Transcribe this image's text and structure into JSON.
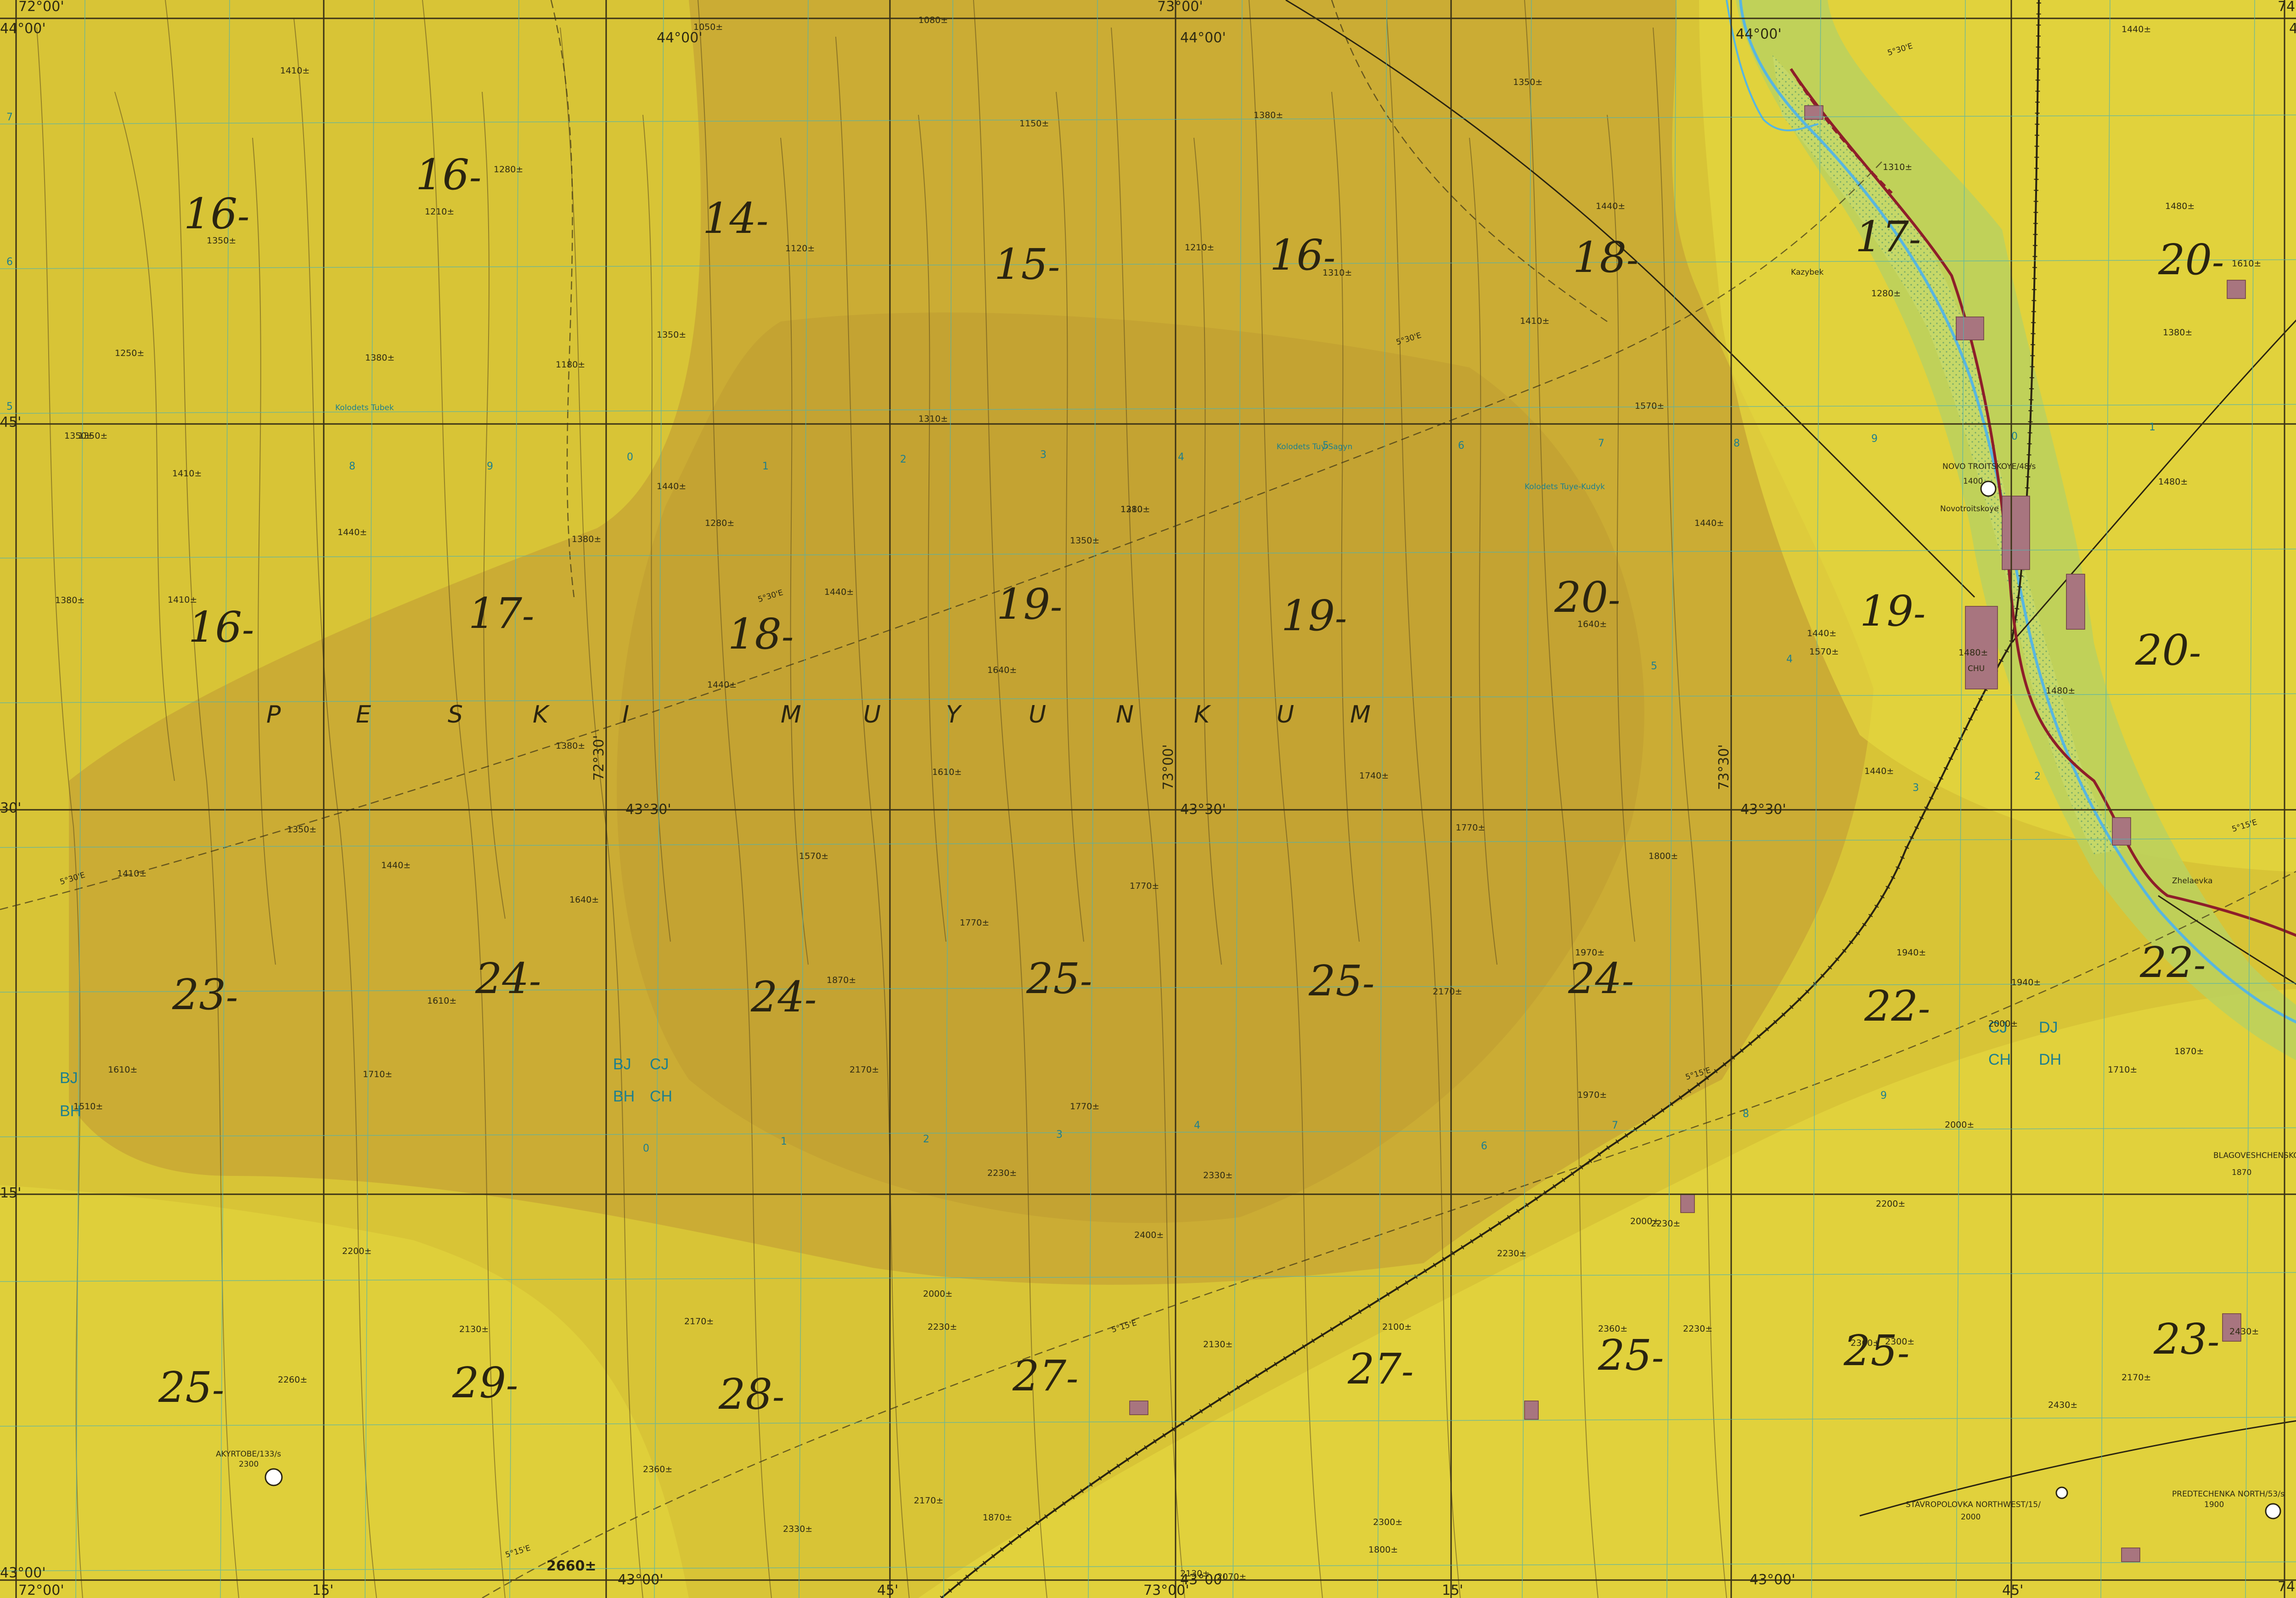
{
  "colors": {
    "terrain_base": "#d8c436",
    "terrain_dark": "#c7a733",
    "terrain_light": "#e4d63c",
    "valley_green": "#bfd35a",
    "river_blue": "#58b6e0",
    "settlement": "#a8757f",
    "road_red": "#8e1e2a",
    "grid_line": "#3a3216",
    "utm_line": "#4fb3b0"
  },
  "corner_labels": {
    "top_left_lon": "72°00'",
    "top_left_lat": "44°00'",
    "top_center_lat": "44°00'",
    "top_center_lon": "73°00'",
    "top_right_lat_a": "44°00'",
    "top_right_lat_b": "44°00'",
    "top_right_lon": "74°00'",
    "bottom_left_lat": "43°00'",
    "bottom_left_lon": "72°00'",
    "bottom_mid_lat_a": "43°00'",
    "bottom_mid_lon": "73°00'",
    "bottom_mid_lat_b": "43°00'",
    "bottom_right_lat": "43°00'",
    "bottom_right_lon": "74°00'"
  },
  "graticule": {
    "lat_45": "45'",
    "lat_30": "30'",
    "lat_15": "15'",
    "lat_4330_a": "43°30'",
    "lat_4330_b": "43°30'",
    "lat_4330_c": "43°30'",
    "lon_7230": "72°30'",
    "lon_7300": "73°00'",
    "lon_7330": "73°30'",
    "lon_15_a": "15'",
    "lon_45_a": "45'",
    "lon_15_b": "15'",
    "lon_45_b": "45'"
  },
  "magnetic_declination": {
    "d1": "5°30'E",
    "d2": "5°30'E",
    "d3": "5°30'E",
    "d4": "5°30'E",
    "d5": "5°15'E",
    "d6": "5°15'E",
    "d7": "5°15'E",
    "d8": "5°15'E"
  },
  "desert_name": {
    "letters": [
      "P",
      "E",
      "S",
      "K",
      "I",
      "M",
      "U",
      "Y",
      "U",
      "N",
      "K",
      "U",
      "M"
    ]
  },
  "grid_zone_labels": {
    "left_bj": "BJ",
    "left_bh": "BH",
    "center_bj": "BJ",
    "center_cj": "CJ",
    "center_bh": "BH",
    "center_ch": "CH",
    "right_cj": "CJ",
    "right_dj": "DJ",
    "right_ch": "CH",
    "right_dh": "DH"
  },
  "max_elevation_figures": [
    {
      "value": "16",
      "suffix": "-"
    },
    {
      "value": "16",
      "suffix": "-"
    },
    {
      "value": "14",
      "suffix": "-"
    },
    {
      "value": "15",
      "suffix": "-"
    },
    {
      "value": "16",
      "suffix": "-"
    },
    {
      "value": "18",
      "suffix": "-"
    },
    {
      "value": "17",
      "suffix": "-"
    },
    {
      "value": "20",
      "suffix": "-"
    },
    {
      "value": "16",
      "suffix": "-"
    },
    {
      "value": "17",
      "suffix": "-"
    },
    {
      "value": "18",
      "suffix": "-"
    },
    {
      "value": "19",
      "suffix": "-"
    },
    {
      "value": "19",
      "suffix": "-"
    },
    {
      "value": "20",
      "suffix": "-"
    },
    {
      "value": "19",
      "suffix": "-"
    },
    {
      "value": "20",
      "suffix": "-"
    },
    {
      "value": "23",
      "suffix": "-"
    },
    {
      "value": "24",
      "suffix": "-"
    },
    {
      "value": "24",
      "suffix": "-"
    },
    {
      "value": "25",
      "suffix": "-"
    },
    {
      "value": "25",
      "suffix": "-"
    },
    {
      "value": "24",
      "suffix": "-"
    },
    {
      "value": "22",
      "suffix": "-"
    },
    {
      "value": "22",
      "suffix": "-"
    },
    {
      "value": "25",
      "suffix": "-"
    },
    {
      "value": "29",
      "suffix": "-"
    },
    {
      "value": "28",
      "suffix": "-"
    },
    {
      "value": "27",
      "suffix": "-"
    },
    {
      "value": "27",
      "suffix": "-"
    },
    {
      "value": "25",
      "suffix": "-"
    },
    {
      "value": "25",
      "suffix": "-"
    },
    {
      "value": "23",
      "suffix": "-"
    }
  ],
  "spot_heights": [
    "1410±",
    "1050±",
    "1080±",
    "1440±",
    "1280±",
    "1210±",
    "1350±",
    "1150±",
    "1380±",
    "1120±",
    "1210±",
    "1310±",
    "1350±",
    "1310±",
    "1440±",
    "1480±",
    "1280±",
    "1350±",
    "1250±",
    "1180±",
    "1380±",
    "1410±",
    "1380±",
    "1350±",
    "1310±",
    "1570±",
    "1610±",
    "1350±",
    "1410±",
    "1440±",
    "1280±",
    "1280±",
    "1310±",
    "1440±",
    "1480±",
    "1350±",
    "1440±",
    "1380±",
    "1410±",
    "1380±",
    "1440±",
    "1440±",
    "1640±",
    "1640±",
    "1480±",
    "1440±",
    "1570±",
    "1480±",
    "1380±",
    "1610±",
    "1740±",
    "1440±",
    "1350±",
    "1410±",
    "1440±",
    "1640±",
    "1570±",
    "1770±",
    "1770±",
    "1770±",
    "1800±",
    "1970±",
    "1940±",
    "1870±",
    "1610±",
    "1610±",
    "1710±",
    "1510±",
    "1770±",
    "1710±",
    "2170±",
    "2170±",
    "1940±",
    "2000±",
    "1870±",
    "2230±",
    "2330±",
    "1970±",
    "2000±",
    "2000±",
    "2200±",
    "2400±",
    "2200±",
    "2000±",
    "2230±",
    "2230±",
    "2230±",
    "2100±",
    "2170±",
    "2130±",
    "2260±",
    "2130±",
    "2360±",
    "2230±",
    "2360±",
    "2300±",
    "2170±",
    "2430±",
    "2430±",
    "2360±",
    "2170±",
    "2300±",
    "2330±",
    "2130±",
    "2070±",
    "1800±",
    "1870±"
  ],
  "highest_point": "2660±",
  "places": {
    "novo_troitskoye_label": "NOVO TROITSKOYE/48/s",
    "novo_troitskoye_elev": "1400",
    "novotroitskoye": "Novotroitskoye",
    "chu": "CHU",
    "blagoveshchenskoye": "BLAGOVESHCHENSKOYE CHU/50/",
    "blagoveshchenskoye_elev": "1870",
    "akyrtobe": "AKYRTOBE/133/s",
    "akyrtobe_elev": "2300",
    "stavropolovka": "STAVROPOLOVKA NORTHWEST/15/",
    "stavropolovka_elev": "2000",
    "predtechenka": "PREDTECHENKA NORTH/53/s",
    "predtechenka_elev": "1900",
    "kol_tubek": "Kolodets Tubek",
    "kol_tuy_sagyn": "Kolodets Tuy-Sagyn",
    "kol_tuy_kudyk": "Kolodets Tuye-Kudyk",
    "kazybek": "Kazybek",
    "zhelaevka": "Zhelaevka"
  },
  "utm_numbers": {
    "n1": "7",
    "n2": "6",
    "n3": "5",
    "n4": "8",
    "n5": "9",
    "n6": "0",
    "n7": "1",
    "n8": "2",
    "n9": "3",
    "n10": "4",
    "n11": "5",
    "n12": "6",
    "n13": "7",
    "n14": "8",
    "n15": "9",
    "n16": "0",
    "n17": "1",
    "n18": "2",
    "n19": "3",
    "n20": "4",
    "n21": "5",
    "n22": "6",
    "n23": "7",
    "n24": "8",
    "n25": "9",
    "n26": "0",
    "n27": "1",
    "n28": "2",
    "n29": "3",
    "n30": "4"
  }
}
